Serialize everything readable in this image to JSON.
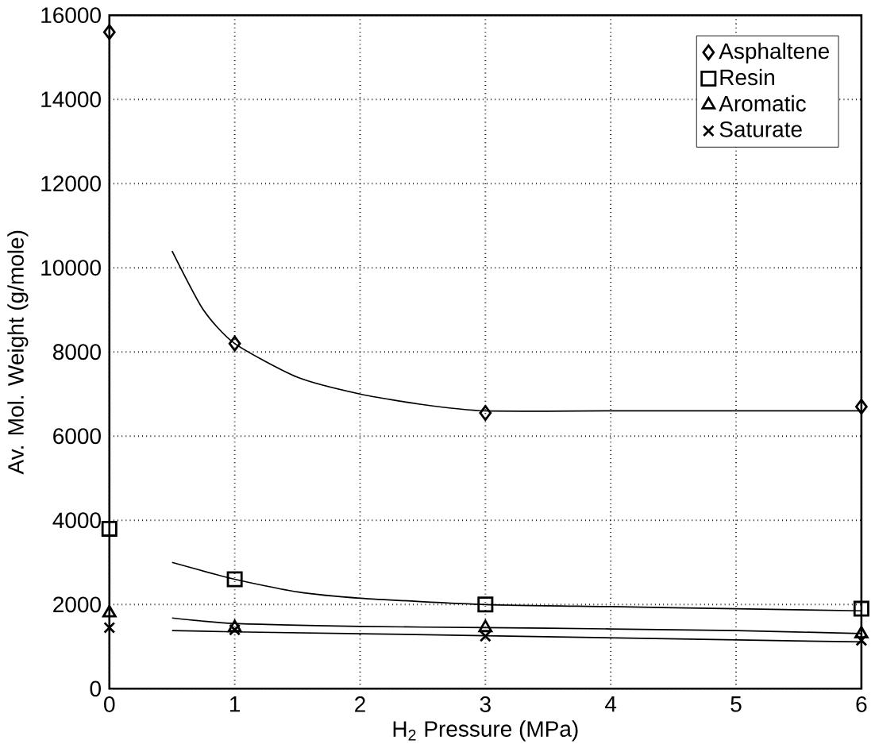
{
  "chart_data": {
    "type": "scatter",
    "xlabel": "H$_{2}$ Pressure (MPa)",
    "ylabel": "Av. Mol. Weight (g/mole)",
    "xlim": [
      0,
      6
    ],
    "ylim": [
      0,
      16000
    ],
    "xticks": [
      0,
      1,
      2,
      3,
      4,
      5,
      6
    ],
    "yticks": [
      0,
      2000,
      4000,
      6000,
      8000,
      10000,
      12000,
      14000,
      16000
    ],
    "grid": true,
    "legend": "top right",
    "series": [
      {
        "name": "Asphaltene",
        "color": "#000000",
        "marker": "diamond",
        "x": [
          0,
          1,
          3,
          6
        ],
        "values": [
          15600,
          8200,
          6550,
          6700
        ]
      },
      {
        "name": "Resin",
        "color": "#000000",
        "marker": "square",
        "x": [
          0,
          1,
          3,
          6
        ],
        "values": [
          3800,
          2600,
          2000,
          1900
        ]
      },
      {
        "name": "Aromatic",
        "color": "#000000",
        "marker": "triangle",
        "x": [
          0,
          1,
          3,
          6
        ],
        "values": [
          1800,
          1450,
          1450,
          1300
        ]
      },
      {
        "name": "Saturate",
        "color": "#000000",
        "marker": "cross",
        "x": [
          0,
          1,
          3,
          6
        ],
        "values": [
          1450,
          1400,
          1250,
          1150
        ]
      },
      {
        "type": "line",
        "color": "#000000",
        "marker": "none",
        "x": [
          0.5,
          0.75,
          1,
          1.5,
          2,
          2.5,
          3,
          4,
          5,
          6
        ],
        "values": [
          10400,
          9000,
          8200,
          7400,
          7000,
          6750,
          6600,
          6600,
          6600,
          6600
        ]
      },
      {
        "type": "line",
        "color": "#000000",
        "marker": "none",
        "x": [
          0.5,
          1,
          1.5,
          2,
          3,
          4,
          5,
          6
        ],
        "values": [
          3000,
          2600,
          2300,
          2150,
          2000,
          1950,
          1900,
          1850
        ]
      },
      {
        "type": "line",
        "color": "#000000",
        "marker": "none",
        "x": [
          0.5,
          1,
          2,
          3,
          4,
          5,
          6
        ],
        "values": [
          1680,
          1550,
          1480,
          1450,
          1420,
          1380,
          1310
        ]
      },
      {
        "type": "line",
        "color": "#000000",
        "marker": "none",
        "x": [
          0.5,
          1,
          3,
          6
        ],
        "values": [
          1380,
          1350,
          1260,
          1110
        ]
      }
    ]
  }
}
